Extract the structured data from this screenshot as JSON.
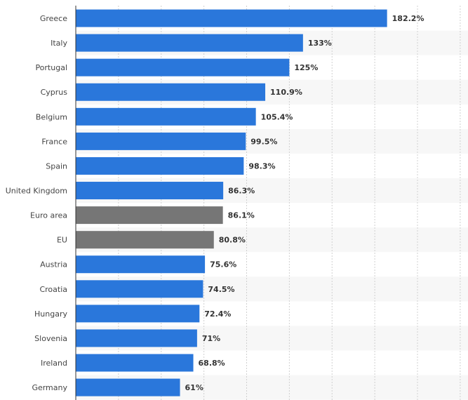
{
  "chart_data": {
    "type": "bar",
    "orientation": "horizontal",
    "title": "",
    "xlabel": "",
    "ylabel": "",
    "xlim": [
      0,
      225
    ],
    "grid": true,
    "categories": [
      "Greece",
      "Italy",
      "Portugal",
      "Cyprus",
      "Belgium",
      "France",
      "Spain",
      "United Kingdom",
      "Euro area",
      "EU",
      "Austria",
      "Croatia",
      "Hungary",
      "Slovenia",
      "Ireland",
      "Germany"
    ],
    "values": [
      182.2,
      133,
      125,
      110.9,
      105.4,
      99.5,
      98.3,
      86.3,
      86.1,
      80.8,
      75.6,
      74.5,
      72.4,
      71,
      68.8,
      61
    ],
    "labels": [
      "182.2%",
      "133%",
      "125%",
      "110.9%",
      "105.4%",
      "99.5%",
      "98.3%",
      "86.3%",
      "86.1%",
      "80.8%",
      "75.6%",
      "74.5%",
      "72.4%",
      "71%",
      "68.8%",
      "61%"
    ],
    "highlight": [
      "Euro area",
      "EU"
    ],
    "colors": {
      "bar": "#2a77db",
      "highlight": "#767676",
      "stripe": "#f7f7f7",
      "grid": "#d0d0d0"
    }
  }
}
